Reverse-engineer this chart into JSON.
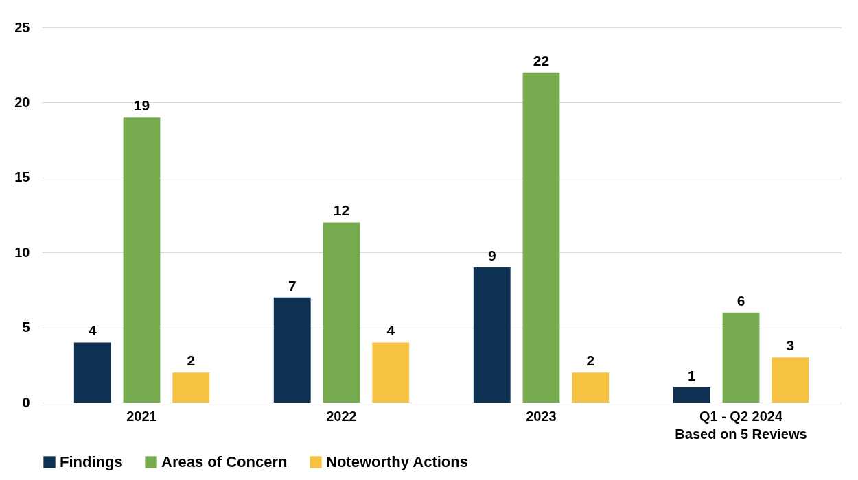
{
  "chart_data": {
    "type": "bar",
    "categories": [
      "2021",
      "2022",
      "2023",
      "Q1 - Q2 2024\nBased on 5 Reviews"
    ],
    "series": [
      {
        "name": "Findings",
        "color": "#0d3152",
        "values": [
          4,
          7,
          9,
          1
        ]
      },
      {
        "name": "Areas of Concern",
        "color": "#76ac4f",
        "values": [
          19,
          12,
          22,
          6
        ]
      },
      {
        "name": "Noteworthy Actions",
        "color": "#f5c242",
        "values": [
          2,
          4,
          2,
          3
        ]
      }
    ],
    "ylim": [
      0,
      25
    ],
    "yticks": [
      0,
      5,
      10,
      15,
      20,
      25
    ],
    "grid": "y",
    "legend": "bottom",
    "data_labels": true
  }
}
